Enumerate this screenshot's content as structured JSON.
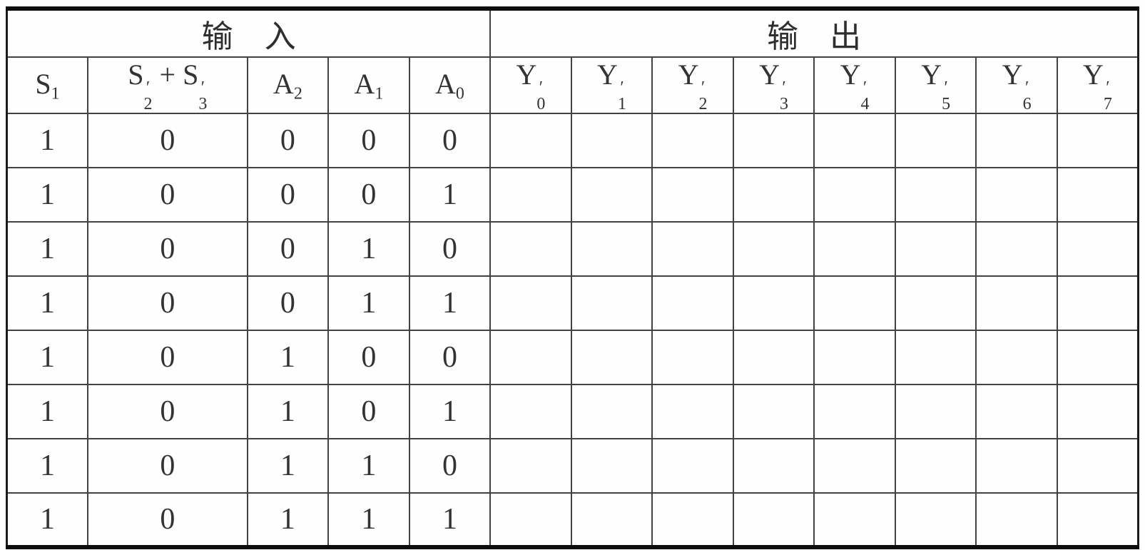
{
  "table": {
    "group_headers": {
      "input": "输　入",
      "output": "输　出"
    },
    "prime_glyph": "′",
    "columns": [
      {
        "name": "s1",
        "group": "input",
        "parts": [
          {
            "base": "S",
            "sub": "1"
          }
        ]
      },
      {
        "name": "s2p-plus-s3p",
        "group": "input",
        "parts": [
          {
            "base": "S",
            "sub": "2",
            "prime": true
          },
          {
            "text": " + "
          },
          {
            "base": "S",
            "sub": "3",
            "prime": true
          }
        ]
      },
      {
        "name": "a2",
        "group": "input",
        "parts": [
          {
            "base": "A",
            "sub": "2"
          }
        ]
      },
      {
        "name": "a1",
        "group": "input",
        "parts": [
          {
            "base": "A",
            "sub": "1"
          }
        ]
      },
      {
        "name": "a0",
        "group": "input",
        "parts": [
          {
            "base": "A",
            "sub": "0"
          }
        ]
      },
      {
        "name": "y0p",
        "group": "output",
        "parts": [
          {
            "base": "Y",
            "sub": "0",
            "prime": true
          }
        ]
      },
      {
        "name": "y1p",
        "group": "output",
        "parts": [
          {
            "base": "Y",
            "sub": "1",
            "prime": true
          }
        ]
      },
      {
        "name": "y2p",
        "group": "output",
        "parts": [
          {
            "base": "Y",
            "sub": "2",
            "prime": true
          }
        ]
      },
      {
        "name": "y3p",
        "group": "output",
        "parts": [
          {
            "base": "Y",
            "sub": "3",
            "prime": true
          }
        ]
      },
      {
        "name": "y4p",
        "group": "output",
        "parts": [
          {
            "base": "Y",
            "sub": "4",
            "prime": true
          }
        ]
      },
      {
        "name": "y5p",
        "group": "output",
        "parts": [
          {
            "base": "Y",
            "sub": "5",
            "prime": true
          }
        ]
      },
      {
        "name": "y6p",
        "group": "output",
        "parts": [
          {
            "base": "Y",
            "sub": "6",
            "prime": true
          }
        ]
      },
      {
        "name": "y7p",
        "group": "output",
        "parts": [
          {
            "base": "Y",
            "sub": "7",
            "prime": true
          }
        ]
      }
    ],
    "rows": [
      [
        "1",
        "0",
        "0",
        "0",
        "0",
        "",
        "",
        "",
        "",
        "",
        "",
        "",
        ""
      ],
      [
        "1",
        "0",
        "0",
        "0",
        "1",
        "",
        "",
        "",
        "",
        "",
        "",
        "",
        ""
      ],
      [
        "1",
        "0",
        "0",
        "1",
        "0",
        "",
        "",
        "",
        "",
        "",
        "",
        "",
        ""
      ],
      [
        "1",
        "0",
        "0",
        "1",
        "1",
        "",
        "",
        "",
        "",
        "",
        "",
        "",
        ""
      ],
      [
        "1",
        "0",
        "1",
        "0",
        "0",
        "",
        "",
        "",
        "",
        "",
        "",
        "",
        ""
      ],
      [
        "1",
        "0",
        "1",
        "0",
        "1",
        "",
        "",
        "",
        "",
        "",
        "",
        "",
        ""
      ],
      [
        "1",
        "0",
        "1",
        "1",
        "0",
        "",
        "",
        "",
        "",
        "",
        "",
        "",
        ""
      ],
      [
        "1",
        "0",
        "1",
        "1",
        "1",
        "",
        "",
        "",
        "",
        "",
        "",
        "",
        ""
      ]
    ],
    "colors": {
      "text": "#333333",
      "grid_line": "#424242",
      "outer_border": "#0d0d0d",
      "background": "#ffffff"
    }
  }
}
